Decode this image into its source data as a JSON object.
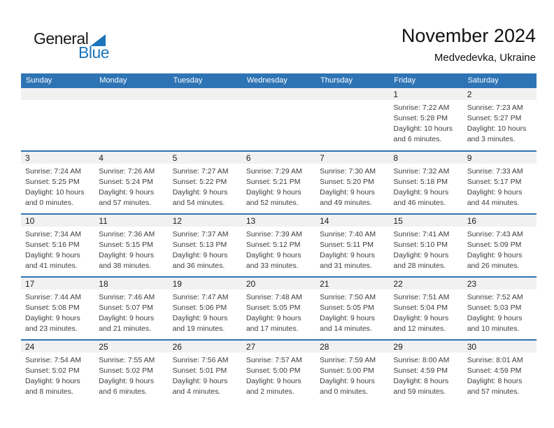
{
  "logo": {
    "general": "General",
    "blue": "Blue"
  },
  "header": {
    "title": "November 2024",
    "subtitle": "Medvedevka, Ukraine"
  },
  "colors": {
    "accent_blue": "#2E74B5",
    "band_gray": "#F1F1F1",
    "logo_blue": "#1B75BC",
    "text_dark": "#3D3D3D"
  },
  "weekdays": [
    "Sunday",
    "Monday",
    "Tuesday",
    "Wednesday",
    "Thursday",
    "Friday",
    "Saturday"
  ],
  "weeks": [
    [
      null,
      null,
      null,
      null,
      null,
      {
        "num": "1",
        "lines": [
          "Sunrise: 7:22 AM",
          "Sunset: 5:28 PM",
          "Daylight: 10 hours",
          "and 6 minutes."
        ]
      },
      {
        "num": "2",
        "lines": [
          "Sunrise: 7:23 AM",
          "Sunset: 5:27 PM",
          "Daylight: 10 hours",
          "and 3 minutes."
        ]
      }
    ],
    [
      {
        "num": "3",
        "lines": [
          "Sunrise: 7:24 AM",
          "Sunset: 5:25 PM",
          "Daylight: 10 hours",
          "and 0 minutes."
        ]
      },
      {
        "num": "4",
        "lines": [
          "Sunrise: 7:26 AM",
          "Sunset: 5:24 PM",
          "Daylight: 9 hours",
          "and 57 minutes."
        ]
      },
      {
        "num": "5",
        "lines": [
          "Sunrise: 7:27 AM",
          "Sunset: 5:22 PM",
          "Daylight: 9 hours",
          "and 54 minutes."
        ]
      },
      {
        "num": "6",
        "lines": [
          "Sunrise: 7:29 AM",
          "Sunset: 5:21 PM",
          "Daylight: 9 hours",
          "and 52 minutes."
        ]
      },
      {
        "num": "7",
        "lines": [
          "Sunrise: 7:30 AM",
          "Sunset: 5:20 PM",
          "Daylight: 9 hours",
          "and 49 minutes."
        ]
      },
      {
        "num": "8",
        "lines": [
          "Sunrise: 7:32 AM",
          "Sunset: 5:18 PM",
          "Daylight: 9 hours",
          "and 46 minutes."
        ]
      },
      {
        "num": "9",
        "lines": [
          "Sunrise: 7:33 AM",
          "Sunset: 5:17 PM",
          "Daylight: 9 hours",
          "and 44 minutes."
        ]
      }
    ],
    [
      {
        "num": "10",
        "lines": [
          "Sunrise: 7:34 AM",
          "Sunset: 5:16 PM",
          "Daylight: 9 hours",
          "and 41 minutes."
        ]
      },
      {
        "num": "11",
        "lines": [
          "Sunrise: 7:36 AM",
          "Sunset: 5:15 PM",
          "Daylight: 9 hours",
          "and 38 minutes."
        ]
      },
      {
        "num": "12",
        "lines": [
          "Sunrise: 7:37 AM",
          "Sunset: 5:13 PM",
          "Daylight: 9 hours",
          "and 36 minutes."
        ]
      },
      {
        "num": "13",
        "lines": [
          "Sunrise: 7:39 AM",
          "Sunset: 5:12 PM",
          "Daylight: 9 hours",
          "and 33 minutes."
        ]
      },
      {
        "num": "14",
        "lines": [
          "Sunrise: 7:40 AM",
          "Sunset: 5:11 PM",
          "Daylight: 9 hours",
          "and 31 minutes."
        ]
      },
      {
        "num": "15",
        "lines": [
          "Sunrise: 7:41 AM",
          "Sunset: 5:10 PM",
          "Daylight: 9 hours",
          "and 28 minutes."
        ]
      },
      {
        "num": "16",
        "lines": [
          "Sunrise: 7:43 AM",
          "Sunset: 5:09 PM",
          "Daylight: 9 hours",
          "and 26 minutes."
        ]
      }
    ],
    [
      {
        "num": "17",
        "lines": [
          "Sunrise: 7:44 AM",
          "Sunset: 5:08 PM",
          "Daylight: 9 hours",
          "and 23 minutes."
        ]
      },
      {
        "num": "18",
        "lines": [
          "Sunrise: 7:46 AM",
          "Sunset: 5:07 PM",
          "Daylight: 9 hours",
          "and 21 minutes."
        ]
      },
      {
        "num": "19",
        "lines": [
          "Sunrise: 7:47 AM",
          "Sunset: 5:06 PM",
          "Daylight: 9 hours",
          "and 19 minutes."
        ]
      },
      {
        "num": "20",
        "lines": [
          "Sunrise: 7:48 AM",
          "Sunset: 5:05 PM",
          "Daylight: 9 hours",
          "and 17 minutes."
        ]
      },
      {
        "num": "21",
        "lines": [
          "Sunrise: 7:50 AM",
          "Sunset: 5:05 PM",
          "Daylight: 9 hours",
          "and 14 minutes."
        ]
      },
      {
        "num": "22",
        "lines": [
          "Sunrise: 7:51 AM",
          "Sunset: 5:04 PM",
          "Daylight: 9 hours",
          "and 12 minutes."
        ]
      },
      {
        "num": "23",
        "lines": [
          "Sunrise: 7:52 AM",
          "Sunset: 5:03 PM",
          "Daylight: 9 hours",
          "and 10 minutes."
        ]
      }
    ],
    [
      {
        "num": "24",
        "lines": [
          "Sunrise: 7:54 AM",
          "Sunset: 5:02 PM",
          "Daylight: 9 hours",
          "and 8 minutes."
        ]
      },
      {
        "num": "25",
        "lines": [
          "Sunrise: 7:55 AM",
          "Sunset: 5:02 PM",
          "Daylight: 9 hours",
          "and 6 minutes."
        ]
      },
      {
        "num": "26",
        "lines": [
          "Sunrise: 7:56 AM",
          "Sunset: 5:01 PM",
          "Daylight: 9 hours",
          "and 4 minutes."
        ]
      },
      {
        "num": "27",
        "lines": [
          "Sunrise: 7:57 AM",
          "Sunset: 5:00 PM",
          "Daylight: 9 hours",
          "and 2 minutes."
        ]
      },
      {
        "num": "28",
        "lines": [
          "Sunrise: 7:59 AM",
          "Sunset: 5:00 PM",
          "Daylight: 9 hours",
          "and 0 minutes."
        ]
      },
      {
        "num": "29",
        "lines": [
          "Sunrise: 8:00 AM",
          "Sunset: 4:59 PM",
          "Daylight: 8 hours",
          "and 59 minutes."
        ]
      },
      {
        "num": "30",
        "lines": [
          "Sunrise: 8:01 AM",
          "Sunset: 4:59 PM",
          "Daylight: 8 hours",
          "and 57 minutes."
        ]
      }
    ]
  ]
}
